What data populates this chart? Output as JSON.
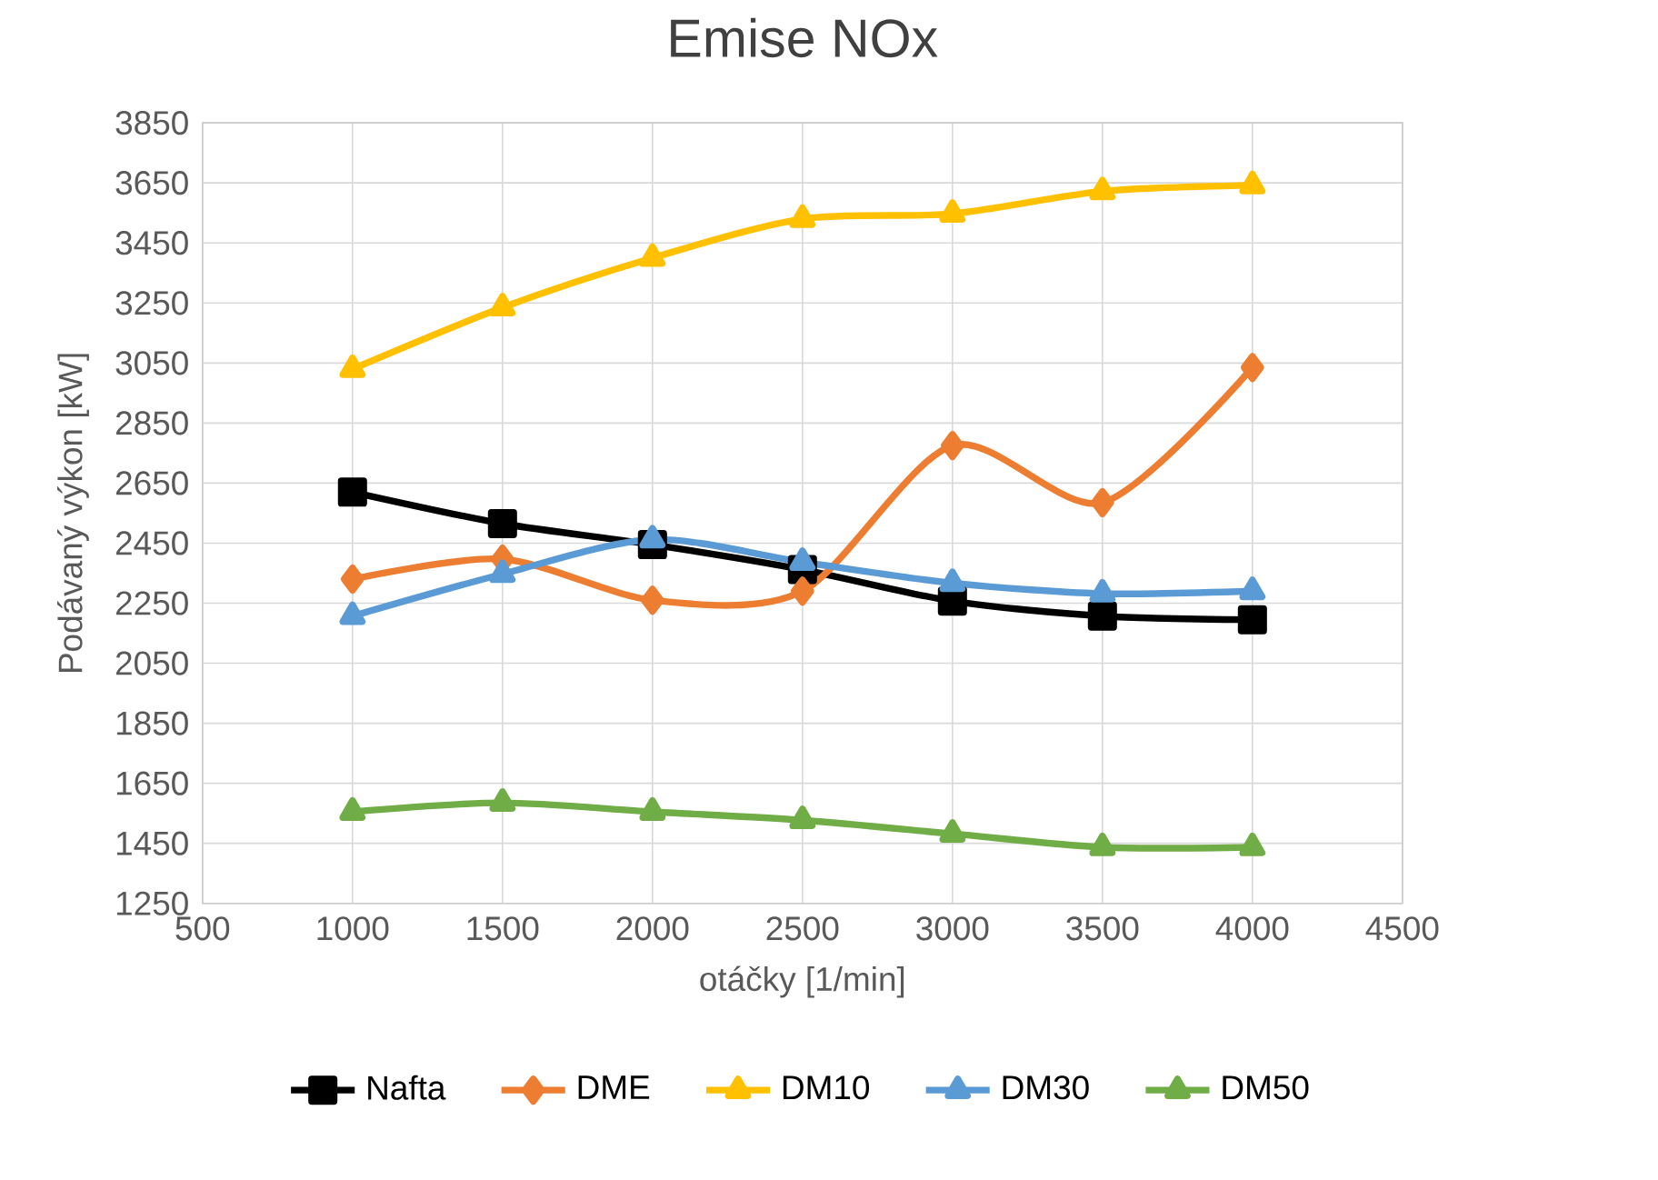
{
  "chart_data": {
    "type": "line",
    "title": "Emise NOx",
    "xlabel": "otáčky [1/min]",
    "ylabel": "Podávaný výkon [kW]",
    "x": [
      1000,
      1500,
      2000,
      2500,
      3000,
      3500,
      4000
    ],
    "series": [
      {
        "name": "Nafta",
        "color": "#000000",
        "marker": "square",
        "values": [
          2620,
          2515,
          2445,
          2362,
          2257,
          2207,
          2195
        ]
      },
      {
        "name": "DME",
        "color": "#ed7d31",
        "marker": "diamond",
        "values": [
          2330,
          2397,
          2260,
          2290,
          2775,
          2585,
          3035
        ]
      },
      {
        "name": "DM10",
        "color": "#ffc000",
        "marker": "triangle",
        "values": [
          3030,
          3235,
          3400,
          3530,
          3547,
          3622,
          3642
        ]
      },
      {
        "name": "DM30",
        "color": "#5b9bd5",
        "marker": "triangle",
        "values": [
          2207,
          2347,
          2462,
          2387,
          2317,
          2282,
          2290
        ]
      },
      {
        "name": "DM50",
        "color": "#70ad47",
        "marker": "triangle",
        "values": [
          1555,
          1585,
          1555,
          1527,
          1482,
          1437,
          1437
        ]
      }
    ],
    "xlim": [
      500,
      4500
    ],
    "xticks": [
      500,
      1000,
      1500,
      2000,
      2500,
      3000,
      3500,
      4000,
      4500
    ],
    "ylim": [
      1250,
      3850
    ],
    "yticks": [
      1250,
      1450,
      1650,
      1850,
      2050,
      2250,
      2450,
      2650,
      2850,
      3050,
      3250,
      3450,
      3650,
      3850
    ],
    "grid": true,
    "legend": "bottom",
    "line_style": "solid"
  }
}
